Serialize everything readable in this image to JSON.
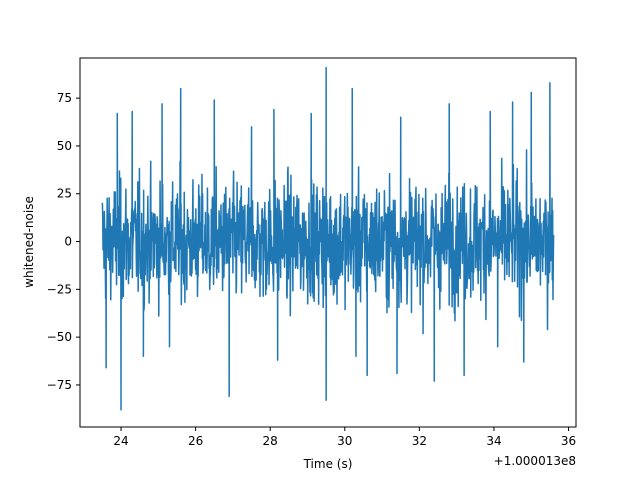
{
  "chart_data": {
    "type": "line",
    "title": "",
    "xlabel": "Time (s)",
    "ylabel": "whitened-noise",
    "x_offset_label": "+1.000013e8",
    "xlim": [
      22.9,
      36.2
    ],
    "ylim": [
      -97,
      96
    ],
    "x_ticks": [
      24,
      26,
      28,
      30,
      32,
      34,
      36
    ],
    "x_tick_labels": [
      "24",
      "26",
      "28",
      "30",
      "32",
      "34",
      "36"
    ],
    "y_ticks": [
      -75,
      -50,
      -25,
      0,
      25,
      50,
      75
    ],
    "y_tick_labels": [
      "−75",
      "−50",
      "−25",
      "0",
      "25",
      "50",
      "75"
    ],
    "grid": false,
    "series": [
      {
        "color": "#1f77b4",
        "x_range": [
          23.5,
          35.6
        ],
        "typical_band": [
          -38,
          38
        ],
        "peaks": [
          {
            "x": 23.9,
            "y": 67
          },
          {
            "x": 24.3,
            "y": 68
          },
          {
            "x": 25.1,
            "y": 72
          },
          {
            "x": 25.6,
            "y": 80
          },
          {
            "x": 26.5,
            "y": 74
          },
          {
            "x": 27.5,
            "y": 60
          },
          {
            "x": 28.1,
            "y": 69
          },
          {
            "x": 29.1,
            "y": 67
          },
          {
            "x": 29.5,
            "y": 91
          },
          {
            "x": 30.2,
            "y": 80
          },
          {
            "x": 31.5,
            "y": 65
          },
          {
            "x": 32.8,
            "y": 72
          },
          {
            "x": 33.9,
            "y": 68
          },
          {
            "x": 34.5,
            "y": 73
          },
          {
            "x": 35.0,
            "y": 78
          },
          {
            "x": 35.5,
            "y": 83
          }
        ],
        "troughs": [
          {
            "x": 23.6,
            "y": -66
          },
          {
            "x": 24.0,
            "y": -88
          },
          {
            "x": 24.6,
            "y": -60
          },
          {
            "x": 25.3,
            "y": -55
          },
          {
            "x": 26.9,
            "y": -81
          },
          {
            "x": 28.2,
            "y": -62
          },
          {
            "x": 29.5,
            "y": -83
          },
          {
            "x": 30.3,
            "y": -60
          },
          {
            "x": 30.6,
            "y": -70
          },
          {
            "x": 31.4,
            "y": -69
          },
          {
            "x": 32.4,
            "y": -73
          },
          {
            "x": 33.2,
            "y": -70
          },
          {
            "x": 34.1,
            "y": -55
          },
          {
            "x": 34.8,
            "y": -63
          }
        ]
      }
    ]
  }
}
